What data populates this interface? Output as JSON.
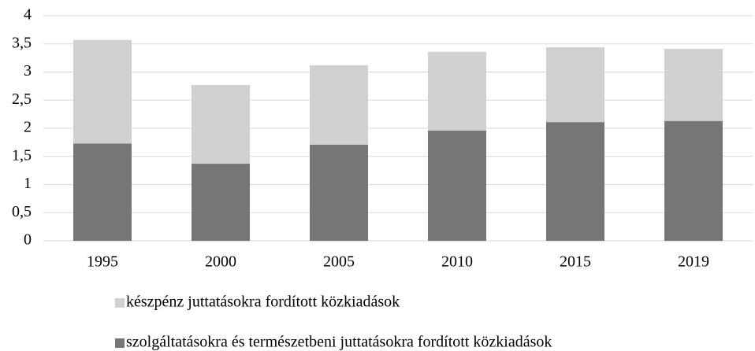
{
  "chart_data": {
    "type": "stacked_bar",
    "categories": [
      "1995",
      "2000",
      "2005",
      "2010",
      "2015",
      "2019"
    ],
    "series": [
      {
        "name": "készpénz juttatásokra fordított közkiadások",
        "color": "#d0d0d0",
        "values": [
          1.84,
          1.4,
          1.41,
          1.4,
          1.33,
          1.28
        ]
      },
      {
        "name": "szolgáltatásokra és természetbeni juttatásokra fordított közkiadások",
        "color": "#767676",
        "values": [
          1.73,
          1.37,
          1.71,
          1.96,
          2.11,
          2.13
        ]
      }
    ],
    "ylim": [
      0,
      4
    ],
    "yticks": [
      0,
      {
        "value": 0.5,
        "label": "0,5"
      },
      1,
      {
        "value": 1.5,
        "label": "1,5"
      },
      2,
      {
        "value": 2.5,
        "label": "2,5"
      },
      3,
      {
        "value": 3.5,
        "label": "3,5"
      },
      4
    ],
    "grid": true
  }
}
